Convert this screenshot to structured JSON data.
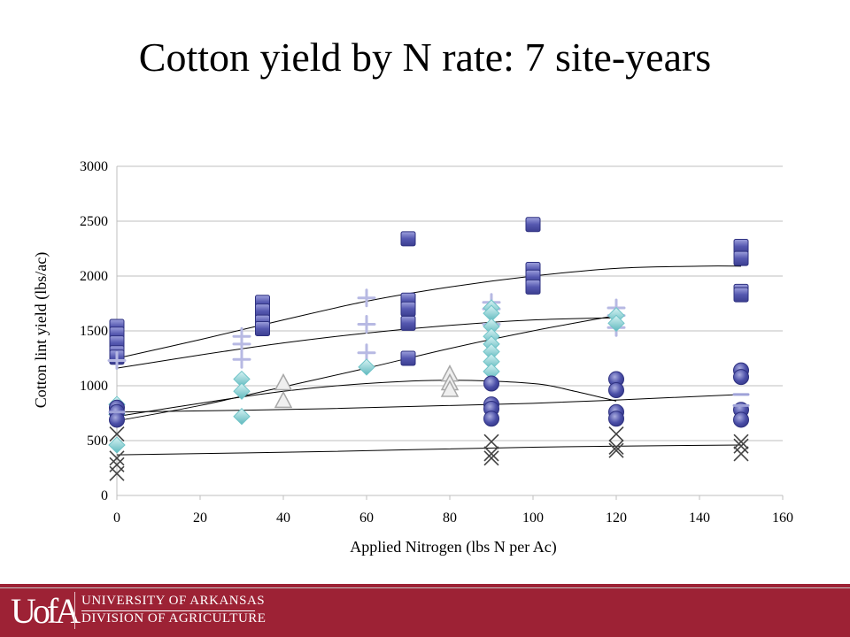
{
  "slide": {
    "title": "Cotton yield by N rate: 7 site-years"
  },
  "footer": {
    "logo_text": "UofA",
    "line1": "UNIVERSITY OF ARKANSAS",
    "line2": "DIVISION OF AGRICULTURE",
    "background_color": "#9d2235"
  },
  "chart_data": {
    "type": "scatter",
    "title": "",
    "xlabel": "Applied Nitrogen (lbs N per Ac)",
    "ylabel": "Cotton lint yield (lbs/ac)",
    "xlim": [
      0,
      160
    ],
    "ylim": [
      0,
      3000
    ],
    "xticks": [
      0,
      20,
      40,
      60,
      80,
      100,
      120,
      140,
      160
    ],
    "yticks": [
      0,
      500,
      1000,
      1500,
      2000,
      2500,
      3000
    ],
    "grid": "horizontal",
    "legend": "none",
    "series": [
      {
        "marker": "square",
        "color": "#5558b0",
        "points": [
          [
            0,
            1540
          ],
          [
            0,
            1470
          ],
          [
            0,
            1390
          ],
          [
            0,
            1300
          ],
          [
            0,
            1260
          ],
          [
            35,
            1760
          ],
          [
            35,
            1680
          ],
          [
            35,
            1580
          ],
          [
            35,
            1520
          ],
          [
            70,
            2340
          ],
          [
            70,
            1780
          ],
          [
            70,
            1700
          ],
          [
            70,
            1570
          ],
          [
            70,
            1250
          ],
          [
            100,
            2470
          ],
          [
            100,
            2060
          ],
          [
            100,
            1990
          ],
          [
            100,
            1900
          ],
          [
            150,
            2270
          ],
          [
            150,
            2160
          ],
          [
            150,
            1860
          ],
          [
            150,
            1830
          ]
        ],
        "trend": [
          [
            0,
            1250
          ],
          [
            20,
            1420
          ],
          [
            40,
            1600
          ],
          [
            60,
            1770
          ],
          [
            80,
            1900
          ],
          [
            100,
            2000
          ],
          [
            120,
            2070
          ],
          [
            140,
            2090
          ],
          [
            150,
            2090
          ]
        ]
      },
      {
        "marker": "plus",
        "color": "#b7b9e3",
        "points": [
          [
            0,
            1230
          ],
          [
            30,
            1450
          ],
          [
            30,
            1380
          ],
          [
            30,
            1240
          ],
          [
            60,
            1800
          ],
          [
            60,
            1560
          ],
          [
            60,
            1300
          ],
          [
            90,
            1760
          ],
          [
            90,
            1700
          ],
          [
            90,
            1560
          ],
          [
            120,
            1710
          ],
          [
            120,
            1640
          ],
          [
            120,
            1530
          ]
        ],
        "trend": [
          [
            0,
            1160
          ],
          [
            20,
            1280
          ],
          [
            40,
            1390
          ],
          [
            60,
            1480
          ],
          [
            80,
            1550
          ],
          [
            100,
            1600
          ],
          [
            120,
            1620
          ]
        ]
      },
      {
        "marker": "diamond",
        "color": "#87d3d6",
        "points": [
          [
            0,
            830
          ],
          [
            0,
            740
          ],
          [
            0,
            460
          ],
          [
            30,
            1060
          ],
          [
            30,
            950
          ],
          [
            30,
            720
          ],
          [
            60,
            1170
          ],
          [
            90,
            1710
          ],
          [
            90,
            1660
          ],
          [
            90,
            1540
          ],
          [
            90,
            1450
          ],
          [
            90,
            1380
          ],
          [
            90,
            1310
          ],
          [
            90,
            1220
          ],
          [
            90,
            1130
          ],
          [
            120,
            1640
          ],
          [
            120,
            1570
          ]
        ],
        "trend": [
          [
            0,
            680
          ],
          [
            20,
            820
          ],
          [
            40,
            990
          ],
          [
            60,
            1160
          ],
          [
            80,
            1340
          ],
          [
            100,
            1500
          ],
          [
            120,
            1640
          ]
        ]
      },
      {
        "marker": "triangle",
        "color": "#d0d0d0",
        "points": [
          [
            40,
            1020
          ],
          [
            40,
            860
          ],
          [
            80,
            1100
          ],
          [
            80,
            1020
          ],
          [
            80,
            960
          ]
        ],
        "trend": []
      },
      {
        "marker": "circle",
        "color": "#4b4fa8",
        "points": [
          [
            0,
            800
          ],
          [
            0,
            760
          ],
          [
            0,
            690
          ],
          [
            90,
            1020
          ],
          [
            90,
            830
          ],
          [
            90,
            790
          ],
          [
            90,
            700
          ],
          [
            120,
            1060
          ],
          [
            120,
            960
          ],
          [
            120,
            760
          ],
          [
            120,
            700
          ],
          [
            150,
            1140
          ],
          [
            150,
            1080
          ],
          [
            150,
            780
          ],
          [
            150,
            690
          ]
        ],
        "trend": [
          [
            0,
            720
          ],
          [
            20,
            840
          ],
          [
            40,
            950
          ],
          [
            60,
            1020
          ],
          [
            80,
            1050
          ],
          [
            100,
            1020
          ],
          [
            110,
            950
          ],
          [
            120,
            860
          ]
        ]
      },
      {
        "marker": "dash",
        "color": "#9fa2d8",
        "points": [
          [
            0,
            760
          ],
          [
            150,
            920
          ],
          [
            150,
            820
          ]
        ],
        "trend": [
          [
            0,
            760
          ],
          [
            50,
            790
          ],
          [
            100,
            840
          ],
          [
            150,
            920
          ]
        ]
      },
      {
        "marker": "x",
        "color": "#444444",
        "points": [
          [
            0,
            560
          ],
          [
            0,
            340
          ],
          [
            0,
            280
          ],
          [
            0,
            200
          ],
          [
            90,
            490
          ],
          [
            90,
            380
          ],
          [
            90,
            340
          ],
          [
            120,
            560
          ],
          [
            120,
            440
          ],
          [
            120,
            410
          ],
          [
            150,
            490
          ],
          [
            150,
            450
          ],
          [
            150,
            380
          ]
        ],
        "trend": [
          [
            0,
            370
          ],
          [
            50,
            400
          ],
          [
            100,
            440
          ],
          [
            150,
            460
          ]
        ]
      }
    ]
  }
}
